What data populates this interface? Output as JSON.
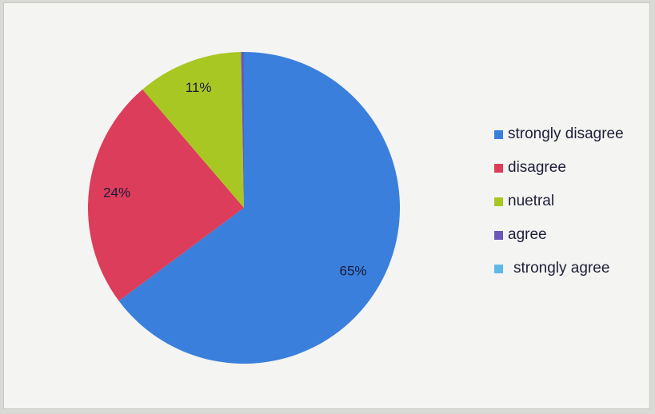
{
  "chart_data": {
    "type": "pie",
    "title": "",
    "slices": [
      {
        "name": "strongly disagree",
        "value": 65,
        "label": "65%",
        "color": "#3a7fdc"
      },
      {
        "name": "disagree",
        "value": 24,
        "label": "24%",
        "color": "#db3d5a"
      },
      {
        "name": "nuetral",
        "value": 11,
        "label": "11%",
        "color": "#a9c723"
      },
      {
        "name": "agree",
        "value": 0.3,
        "label": "",
        "color": "#6b58b8"
      },
      {
        "name": "strongly agree",
        "value": 0,
        "label": "",
        "color": "#5fb8e6"
      }
    ],
    "legend": "right"
  }
}
